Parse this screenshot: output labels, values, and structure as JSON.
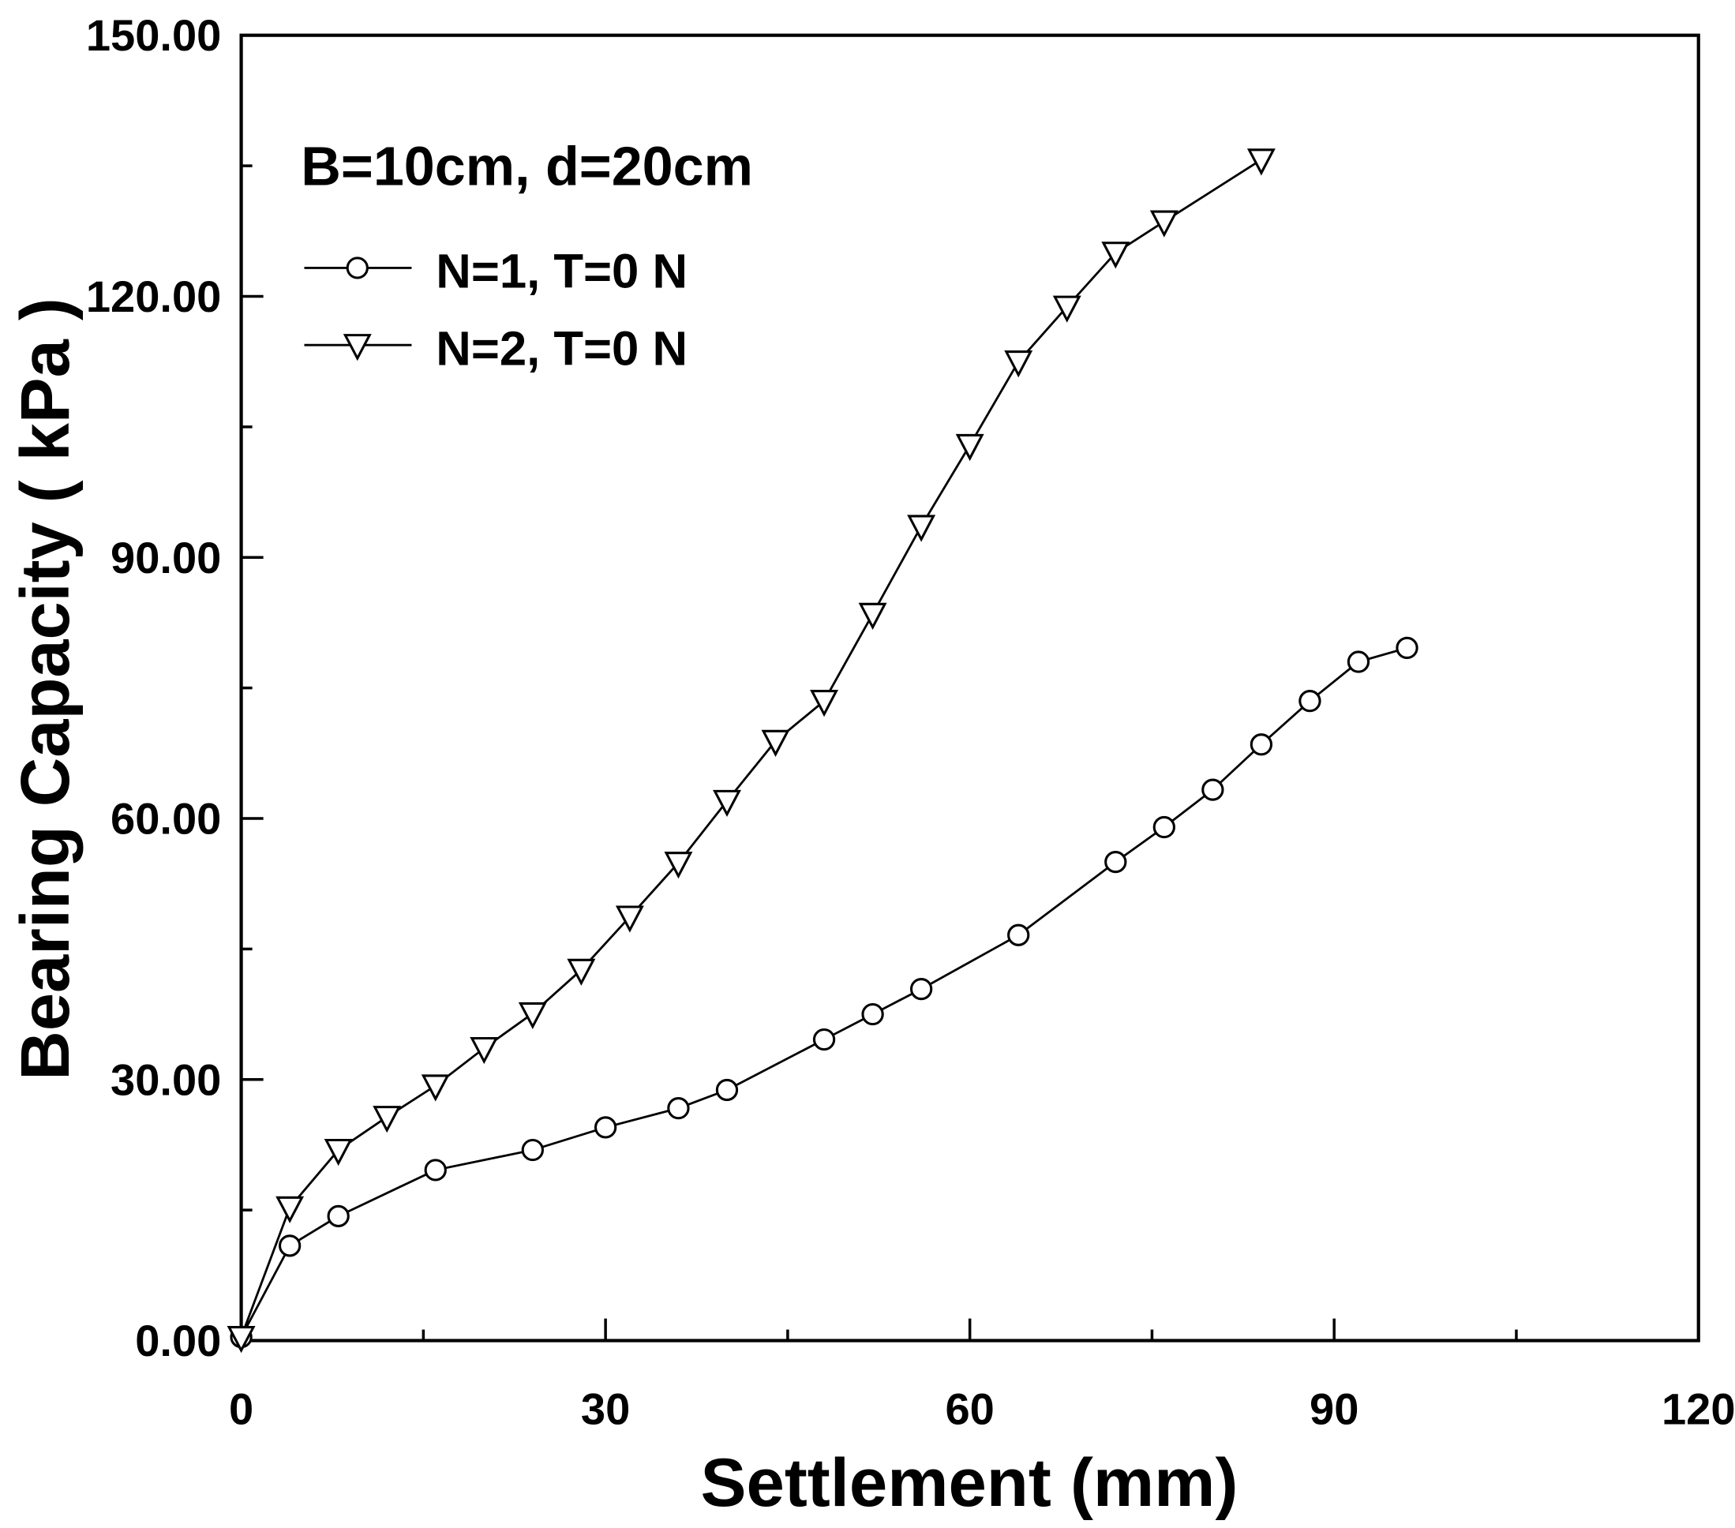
{
  "chart_data": {
    "type": "line",
    "title": "",
    "annotation": "B=10cm, d=20cm",
    "xlabel": "Settlement (mm)",
    "ylabel": "Bearing Capacity ( kPa )",
    "xlim": [
      0,
      120
    ],
    "ylim": [
      0,
      150
    ],
    "x_ticks": [
      0,
      30,
      60,
      90,
      120
    ],
    "x_tick_labels": [
      "0",
      "30",
      "60",
      "90",
      "120"
    ],
    "x_minor_ticks": [
      15,
      45,
      75,
      105
    ],
    "y_ticks": [
      0,
      30,
      60,
      90,
      120,
      150
    ],
    "y_tick_labels": [
      "0.00",
      "30.00",
      "60.00",
      "90.00",
      "120.00",
      "150.00"
    ],
    "y_minor_ticks": [
      15,
      45,
      75,
      105,
      135
    ],
    "grid": false,
    "legend_position": "upper-left",
    "series": [
      {
        "name": "N=1, T=0 N",
        "marker": "circle",
        "color": "#000000",
        "x": [
          0,
          4,
          8,
          16,
          24,
          30,
          36,
          40,
          48,
          52,
          56,
          64,
          72,
          76,
          80,
          84,
          88,
          92,
          96
        ],
        "y": [
          0.4,
          10.9,
          14.3,
          19.6,
          21.9,
          24.5,
          26.7,
          28.8,
          34.6,
          37.5,
          40.4,
          46.6,
          55.0,
          59.0,
          63.3,
          68.5,
          73.5,
          78.0,
          79.6
        ]
      },
      {
        "name": "N=2, T=0 N",
        "marker": "triangle-down",
        "color": "#000000",
        "x": [
          0,
          4,
          8,
          12,
          16,
          20,
          24,
          28,
          32,
          36,
          40,
          44,
          48,
          52,
          56,
          60,
          64,
          68,
          72,
          76,
          84
        ],
        "y": [
          0.4,
          15.3,
          21.9,
          25.7,
          29.3,
          33.6,
          37.6,
          42.6,
          48.7,
          54.9,
          62.0,
          68.9,
          73.5,
          83.5,
          93.6,
          102.9,
          112.5,
          118.8,
          125.0,
          128.6,
          135.7
        ]
      }
    ]
  }
}
